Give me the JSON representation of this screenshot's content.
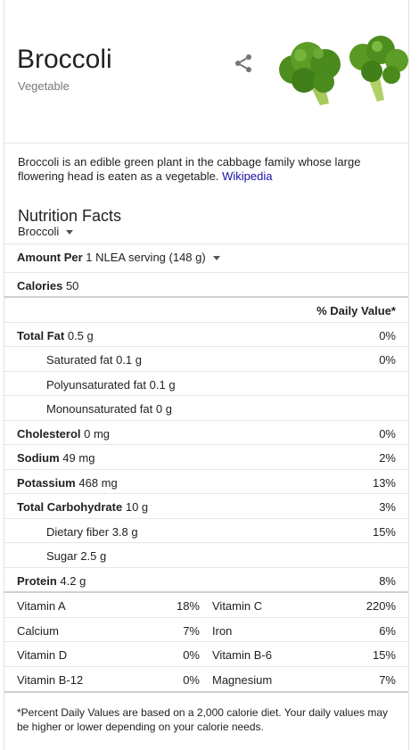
{
  "header": {
    "title": "Broccoli",
    "subtitle": "Vegetable",
    "share_icon": "share-icon",
    "image": "broccoli-photo"
  },
  "description": {
    "text": "Broccoli is an edible green plant in the cabbage family whose large flowering head is eaten as a vegetable.",
    "source_link": "Wikipedia",
    "link_color": "#1a0dab"
  },
  "nutrition": {
    "title": "Nutrition Facts",
    "food_select": "Broccoli",
    "amount_label": "Amount Per",
    "serving": "1 NLEA serving (148 g)",
    "calories_label": "Calories",
    "calories_value": "50",
    "dv_header": "% Daily Value*",
    "rows": [
      {
        "label": "Total Fat",
        "amount": "0.5 g",
        "dv": "0%"
      },
      {
        "label": "Saturated fat",
        "amount": "0.1 g",
        "dv": "0%"
      },
      {
        "label": "Polyunsaturated fat",
        "amount": "0.1 g",
        "dv": ""
      },
      {
        "label": "Monounsaturated fat",
        "amount": "0 g",
        "dv": ""
      },
      {
        "label": "Cholesterol",
        "amount": "0 mg",
        "dv": "0%"
      },
      {
        "label": "Sodium",
        "amount": "49 mg",
        "dv": "2%"
      },
      {
        "label": "Potassium",
        "amount": "468 mg",
        "dv": "13%"
      },
      {
        "label": "Total Carbohydrate",
        "amount": "10 g",
        "dv": "3%"
      },
      {
        "label": "Dietary fiber",
        "amount": "3.8 g",
        "dv": "15%"
      },
      {
        "label": "Sugar",
        "amount": "2.5 g",
        "dv": ""
      },
      {
        "label": "Protein",
        "amount": "4.2 g",
        "dv": "8%"
      }
    ],
    "vitamins": [
      {
        "l1": "Vitamin A",
        "v1": "18%",
        "l2": "Vitamin C",
        "v2": "220%"
      },
      {
        "l1": "Calcium",
        "v1": "7%",
        "l2": "Iron",
        "v2": "6%"
      },
      {
        "l1": "Vitamin D",
        "v1": "0%",
        "l2": "Vitamin B-6",
        "v2": "15%"
      },
      {
        "l1": "Vitamin B-12",
        "v1": "0%",
        "l2": "Magnesium",
        "v2": "7%"
      }
    ],
    "footnote": "*Percent Daily Values are based on a 2,000 calorie diet. Your daily values may be higher or lower depending on your calorie needs."
  }
}
